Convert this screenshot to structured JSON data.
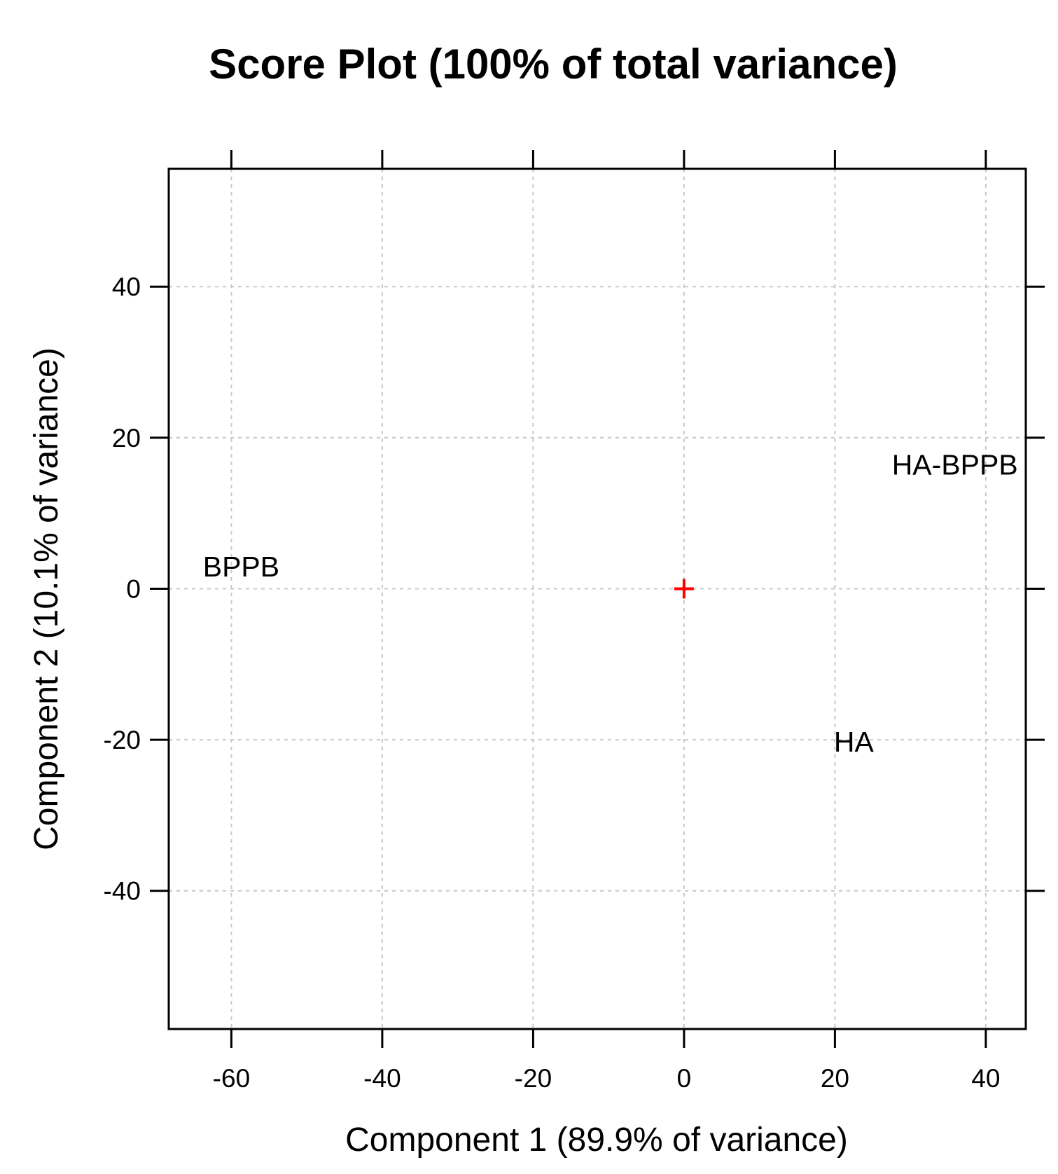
{
  "chart_data": {
    "type": "scatter",
    "title": "Score Plot (100% of total variance)",
    "xlabel": "Component 1 (89.9% of variance)",
    "ylabel": "Component 2 (10.1% of variance)",
    "xlim": [
      -68.3,
      45.3
    ],
    "ylim": [
      -58.3,
      55.6
    ],
    "xticks": [
      -60,
      -40,
      -20,
      0,
      20,
      40
    ],
    "yticks": [
      -40,
      -20,
      0,
      20,
      40
    ],
    "xtick_labels": [
      "-60",
      "-40",
      "-20",
      "0",
      "20",
      "40"
    ],
    "ytick_labels": [
      "-40",
      "-20",
      "0",
      "20",
      "40"
    ],
    "grid": true,
    "points": [
      {
        "label": "BPPB",
        "x": -58.7,
        "y": 3
      },
      {
        "label": "HA-BPPB",
        "x": 35.9,
        "y": 16.5
      },
      {
        "label": "HA",
        "x": 22.5,
        "y": -20.2
      }
    ],
    "center_marker": {
      "x": 0,
      "y": 0,
      "color": "#ff0000"
    },
    "colors": {
      "grid": "#c8c8c8",
      "frame": "#000000",
      "text": "#000000"
    }
  }
}
